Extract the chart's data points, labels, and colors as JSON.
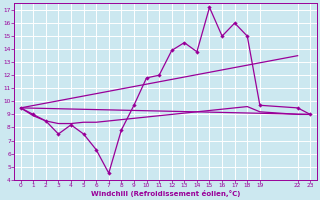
{
  "xlabel": "Windchill (Refroidissement éolien,°C)",
  "bg_color": "#cce8f0",
  "grid_color": "#ffffff",
  "line_color": "#990099",
  "spine_color": "#990099",
  "xlim": [
    -0.5,
    23.5
  ],
  "ylim": [
    4,
    17.5
  ],
  "yticks": [
    4,
    5,
    6,
    7,
    8,
    9,
    10,
    11,
    12,
    13,
    14,
    15,
    16,
    17
  ],
  "xtick_positions": [
    0,
    1,
    2,
    3,
    4,
    5,
    6,
    7,
    8,
    9,
    10,
    11,
    12,
    13,
    14,
    15,
    16,
    17,
    18,
    19,
    22,
    23
  ],
  "xtick_labels": [
    "0",
    "1",
    "2",
    "3",
    "4",
    "5",
    "6",
    "7",
    "8",
    "9",
    "10",
    "11",
    "12",
    "13",
    "14",
    "15",
    "16",
    "17",
    "18",
    "19",
    "22",
    "23"
  ],
  "line1_x": [
    0,
    1,
    2,
    3,
    4,
    5,
    6,
    7,
    8,
    9,
    10,
    11,
    12,
    13,
    14,
    15,
    16,
    17,
    18,
    19,
    22,
    23
  ],
  "line1_y": [
    9.5,
    9.0,
    8.5,
    7.5,
    8.2,
    7.5,
    6.3,
    4.5,
    7.8,
    9.7,
    11.8,
    12.0,
    13.9,
    14.5,
    13.8,
    17.2,
    15.0,
    16.0,
    15.0,
    9.7,
    9.5,
    9.0
  ],
  "line2_x": [
    0,
    1,
    2,
    3,
    4,
    5,
    6,
    7,
    8,
    9,
    10,
    11,
    12,
    13,
    14,
    15,
    16,
    17,
    18,
    19,
    22,
    23
  ],
  "line2_y": [
    9.5,
    8.9,
    8.5,
    8.3,
    8.3,
    8.4,
    8.4,
    8.5,
    8.6,
    8.7,
    8.8,
    8.9,
    9.0,
    9.1,
    9.2,
    9.3,
    9.4,
    9.5,
    9.6,
    9.2,
    9.0,
    9.0
  ],
  "line3_x": [
    0,
    22
  ],
  "line3_y": [
    9.5,
    13.5
  ],
  "line4_x": [
    0,
    23
  ],
  "line4_y": [
    9.5,
    9.0
  ]
}
